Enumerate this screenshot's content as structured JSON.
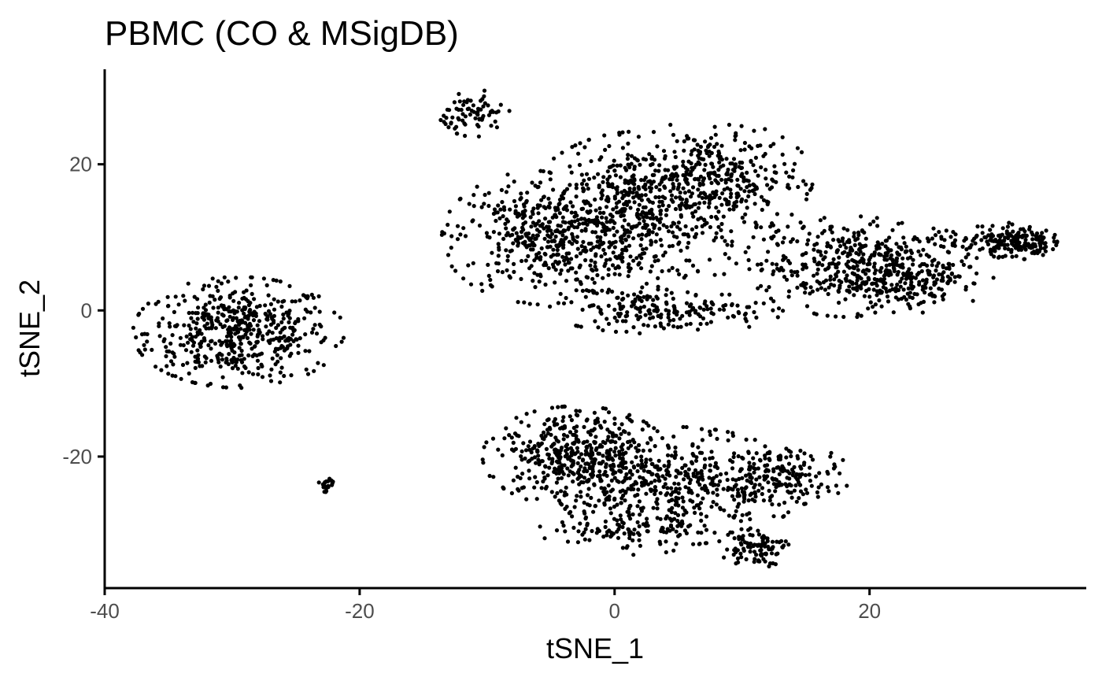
{
  "chart_data": {
    "type": "scatter",
    "title": "PBMC (CO & MSigDB)",
    "xlabel": "tSNE_1",
    "ylabel": "tSNE_2",
    "xlim": [
      -40,
      37
    ],
    "ylim": [
      -38,
      33
    ],
    "xticks": [
      -40,
      -20,
      0,
      20
    ],
    "yticks": [
      -20,
      0,
      20
    ],
    "xtick_labels": [
      "-40",
      "-20",
      "0",
      "20"
    ],
    "ytick_labels": [
      "-20",
      "0",
      "20"
    ],
    "grid": false,
    "legend": "none",
    "point_color": "#000000",
    "clusters": [
      {
        "cx": -29.5,
        "cy": -3.0,
        "sx": 3.6,
        "sy": 3.3,
        "n": 520
      },
      {
        "cx": -5.5,
        "cy": 10.0,
        "sx": 3.5,
        "sy": 4.0,
        "n": 420
      },
      {
        "cx": 2.0,
        "cy": 13.0,
        "sx": 4.0,
        "sy": 5.0,
        "n": 520
      },
      {
        "cx": 7.5,
        "cy": 18.0,
        "sx": 3.5,
        "sy": 3.5,
        "n": 330
      },
      {
        "cx": 4.0,
        "cy": 0.0,
        "sx": 4.0,
        "sy": 1.4,
        "n": 180
      },
      {
        "cx": 18.5,
        "cy": 6.0,
        "sx": 3.5,
        "sy": 3.0,
        "n": 420
      },
      {
        "cx": 24.0,
        "cy": 5.0,
        "sx": 2.5,
        "sy": 2.3,
        "n": 140
      },
      {
        "cx": 31.5,
        "cy": 9.5,
        "sx": 1.4,
        "sy": 1.1,
        "n": 160
      },
      {
        "cx": 27.5,
        "cy": 9.0,
        "sx": 1.6,
        "sy": 1.3,
        "n": 45
      },
      {
        "cx": -11.0,
        "cy": 27.0,
        "sx": 1.2,
        "sy": 1.4,
        "n": 75
      },
      {
        "cx": -3.0,
        "cy": -20.0,
        "sx": 3.2,
        "sy": 3.0,
        "n": 430
      },
      {
        "cx": 5.0,
        "cy": -24.0,
        "sx": 4.2,
        "sy": 3.5,
        "n": 460
      },
      {
        "cx": 13.5,
        "cy": -22.5,
        "sx": 2.2,
        "sy": 1.8,
        "n": 150
      },
      {
        "cx": 1.0,
        "cy": -30.0,
        "sx": 3.0,
        "sy": 1.5,
        "n": 100
      },
      {
        "cx": 11.0,
        "cy": -32.5,
        "sx": 1.2,
        "sy": 1.2,
        "n": 90
      },
      {
        "cx": -22.5,
        "cy": -23.8,
        "sx": 0.35,
        "sy": 0.5,
        "n": 22
      }
    ]
  }
}
